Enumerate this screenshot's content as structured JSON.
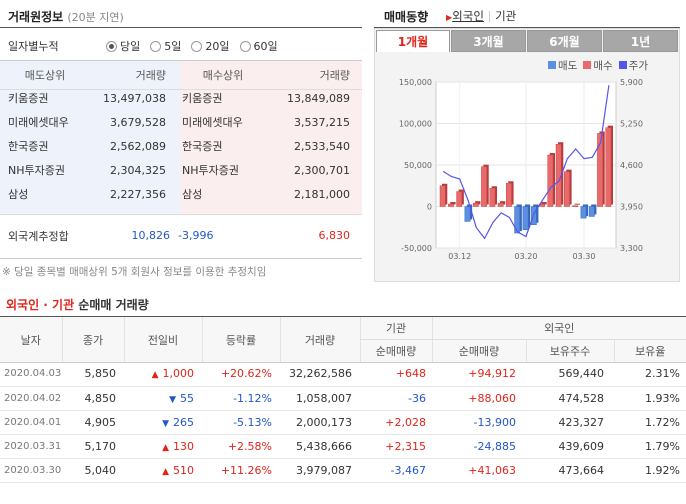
{
  "trade_info": {
    "title": "거래원정보",
    "delay": "(20분 지연)",
    "daily_label": "일자별누적",
    "periods": [
      "당일",
      "5일",
      "20일",
      "60일"
    ],
    "selected_period": 0,
    "headers": [
      "매도상위",
      "거래량",
      "매수상위",
      "거래량"
    ],
    "rows": [
      {
        "sell": "키움증권",
        "sell_vol": "13,497,038",
        "buy": "키움증권",
        "buy_vol": "13,849,089"
      },
      {
        "sell": "미래에셋대우",
        "sell_vol": "3,679,528",
        "buy": "미래에셋대우",
        "buy_vol": "3,537,215"
      },
      {
        "sell": "한국증권",
        "sell_vol": "2,562,089",
        "buy": "한국증권",
        "buy_vol": "2,533,540"
      },
      {
        "sell": "NH투자증권",
        "sell_vol": "2,304,325",
        "buy": "NH투자증권",
        "buy_vol": "2,300,701"
      },
      {
        "sell": "삼성",
        "sell_vol": "2,227,356",
        "buy": "삼성",
        "buy_vol": "2,181,000"
      }
    ],
    "foreign_label": "외국계추정합",
    "foreign_sell": "10,826",
    "foreign_net": "-3,996",
    "foreign_buy": "6,830",
    "note": "※ 당일 종목별 매매상위 5개 회원사 정보를 이용한 추정치임"
  },
  "trend": {
    "title": "매매동향",
    "links": [
      "외국인",
      "기관"
    ],
    "tabs": [
      "1개월",
      "3개월",
      "6개월",
      "1년"
    ],
    "active_tab": 0,
    "legend": [
      "매도",
      "매수",
      "주가"
    ],
    "colors": {
      "sell": "#5b8fe0",
      "buy": "#e86a6a",
      "price": "#5555ee"
    }
  },
  "chart_data": {
    "type": "bar",
    "left_axis": {
      "ticks": [
        "150,000",
        "100,000",
        "50,000",
        "0",
        "-50,000"
      ],
      "ylim": [
        -50000,
        150000
      ]
    },
    "right_axis": {
      "ticks": [
        "5,900",
        "5,250",
        "4,600",
        "3,950",
        "3,300"
      ],
      "ylim": [
        3300,
        5900
      ]
    },
    "x_ticks": [
      "03.12",
      "03.20",
      "03.30"
    ],
    "series": [
      {
        "values": [
          25000,
          3000,
          18000,
          -18000,
          4000,
          48000,
          22000,
          4000,
          28000,
          -32000,
          -28000,
          -22000,
          3000,
          62000,
          75000,
          42000,
          1000,
          -14000,
          -12000,
          88000,
          95000
        ]
      }
    ],
    "price": [
      4500,
      4420,
      4380,
      4050,
      3620,
      3450,
      3700,
      3850,
      3780,
      3550,
      3480,
      3850,
      4050,
      4250,
      4350,
      4700,
      4850,
      4700,
      4720,
      4950,
      5850
    ]
  },
  "net_section": {
    "title_a": "외국인 · 기관",
    "title_b": " 순매매 거래량",
    "headers": {
      "date": "날자",
      "close": "종가",
      "change": "전일비",
      "rate": "등락률",
      "volume": "거래량",
      "inst": "기관",
      "inst_net": "순매매량",
      "foreign": "외국인",
      "foreign_net": "순매매량",
      "hold": "보유주수",
      "hold_rate": "보유율"
    },
    "rows": [
      {
        "date": "2020.04.03",
        "close": "5,850",
        "dir": "up",
        "change": "1,000",
        "rate": "+20.62%",
        "volume": "32,262,586",
        "inst": "+648",
        "foreign": "+94,912",
        "hold": "569,440",
        "hold_rate": "2.31%"
      },
      {
        "date": "2020.04.02",
        "close": "4,850",
        "dir": "down",
        "change": "55",
        "rate": "-1.12%",
        "volume": "1,058,007",
        "inst": "-36",
        "foreign": "+88,060",
        "hold": "474,528",
        "hold_rate": "1.93%"
      },
      {
        "date": "2020.04.01",
        "close": "4,905",
        "dir": "down",
        "change": "265",
        "rate": "-5.13%",
        "volume": "2,000,173",
        "inst": "+2,028",
        "foreign": "-13,900",
        "hold": "423,327",
        "hold_rate": "1.72%"
      },
      {
        "date": "2020.03.31",
        "close": "5,170",
        "dir": "up",
        "change": "130",
        "rate": "+2.58%",
        "volume": "5,438,666",
        "inst": "+2,315",
        "foreign": "-24,885",
        "hold": "439,609",
        "hold_rate": "1.79%"
      },
      {
        "date": "2020.03.30",
        "close": "5,040",
        "dir": "up",
        "change": "510",
        "rate": "+11.26%",
        "volume": "3,979,087",
        "inst": "-3,467",
        "foreign": "+41,063",
        "hold": "473,664",
        "hold_rate": "1.92%"
      }
    ]
  }
}
